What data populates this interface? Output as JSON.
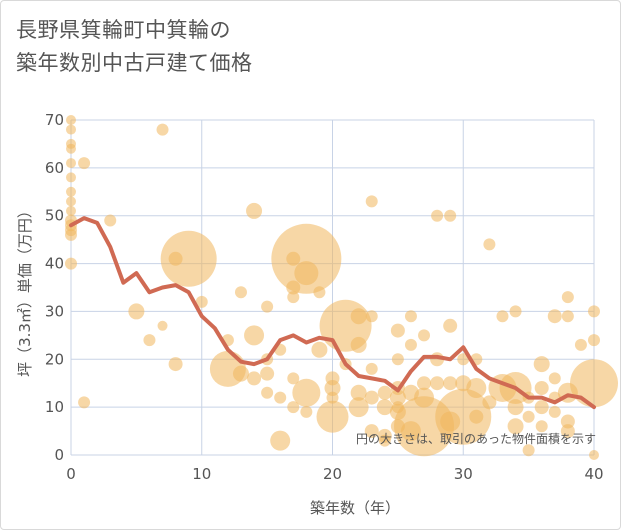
{
  "chart_data": {
    "type": "scatter",
    "title_lines": [
      "長野県箕輪町中箕輪の",
      "築年数別中古戸建て価格"
    ],
    "xlabel": "築年数（年）",
    "ylabel": "坪（3.3㎡）単価（万円）",
    "xlim": [
      0,
      40
    ],
    "ylim": [
      0,
      70
    ],
    "x_ticks": [
      "0",
      "10",
      "20",
      "30",
      "40"
    ],
    "y_ticks": [
      "0",
      "10",
      "20",
      "30",
      "40",
      "50",
      "60",
      "70"
    ],
    "grid": true,
    "annotation": "円の大きさは、取引のあった物件面積を示す",
    "colors": {
      "bubble": "#f0b65c",
      "line": "#d06a53",
      "grid": "#c8d3e6"
    },
    "bubbles": [
      {
        "x": 0,
        "y": 70,
        "s": 5
      },
      {
        "x": 0,
        "y": 68,
        "s": 5
      },
      {
        "x": 0,
        "y": 65,
        "s": 5
      },
      {
        "x": 0,
        "y": 64,
        "s": 5
      },
      {
        "x": 0,
        "y": 61,
        "s": 5
      },
      {
        "x": 0,
        "y": 58,
        "s": 5
      },
      {
        "x": 0,
        "y": 55,
        "s": 5
      },
      {
        "x": 0,
        "y": 53,
        "s": 5
      },
      {
        "x": 0,
        "y": 51,
        "s": 5
      },
      {
        "x": 0,
        "y": 49,
        "s": 6
      },
      {
        "x": 0,
        "y": 48,
        "s": 6
      },
      {
        "x": 0,
        "y": 47,
        "s": 6
      },
      {
        "x": 0,
        "y": 46,
        "s": 6
      },
      {
        "x": 0,
        "y": 40,
        "s": 6
      },
      {
        "x": 1,
        "y": 61,
        "s": 6
      },
      {
        "x": 1,
        "y": 11,
        "s": 6
      },
      {
        "x": 3,
        "y": 49,
        "s": 6
      },
      {
        "x": 5,
        "y": 30,
        "s": 8
      },
      {
        "x": 6,
        "y": 24,
        "s": 6
      },
      {
        "x": 7,
        "y": 68,
        "s": 6
      },
      {
        "x": 7,
        "y": 27,
        "s": 5
      },
      {
        "x": 8,
        "y": 41,
        "s": 7
      },
      {
        "x": 8,
        "y": 19,
        "s": 7
      },
      {
        "x": 9,
        "y": 41,
        "s": 28
      },
      {
        "x": 10,
        "y": 32,
        "s": 6
      },
      {
        "x": 12,
        "y": 18,
        "s": 18
      },
      {
        "x": 12,
        "y": 24,
        "s": 6
      },
      {
        "x": 13,
        "y": 34,
        "s": 6
      },
      {
        "x": 13,
        "y": 17,
        "s": 8
      },
      {
        "x": 14,
        "y": 51,
        "s": 8
      },
      {
        "x": 14,
        "y": 25,
        "s": 10
      },
      {
        "x": 14,
        "y": 16,
        "s": 7
      },
      {
        "x": 15,
        "y": 31,
        "s": 6
      },
      {
        "x": 15,
        "y": 20,
        "s": 6
      },
      {
        "x": 15,
        "y": 17,
        "s": 7
      },
      {
        "x": 15,
        "y": 13,
        "s": 6
      },
      {
        "x": 16,
        "y": 22,
        "s": 6
      },
      {
        "x": 16,
        "y": 12,
        "s": 6
      },
      {
        "x": 16,
        "y": 3,
        "s": 10
      },
      {
        "x": 17,
        "y": 41,
        "s": 7
      },
      {
        "x": 17,
        "y": 35,
        "s": 7
      },
      {
        "x": 17,
        "y": 33,
        "s": 6
      },
      {
        "x": 17,
        "y": 16,
        "s": 6
      },
      {
        "x": 17,
        "y": 10,
        "s": 6
      },
      {
        "x": 18,
        "y": 41,
        "s": 35
      },
      {
        "x": 18,
        "y": 38,
        "s": 12
      },
      {
        "x": 18,
        "y": 13,
        "s": 14
      },
      {
        "x": 18,
        "y": 9,
        "s": 6
      },
      {
        "x": 19,
        "y": 34,
        "s": 6
      },
      {
        "x": 19,
        "y": 22,
        "s": 8
      },
      {
        "x": 20,
        "y": 16,
        "s": 7
      },
      {
        "x": 20,
        "y": 14,
        "s": 8
      },
      {
        "x": 20,
        "y": 12,
        "s": 6
      },
      {
        "x": 20,
        "y": 8,
        "s": 16
      },
      {
        "x": 21,
        "y": 27,
        "s": 26
      },
      {
        "x": 21,
        "y": 19,
        "s": 6
      },
      {
        "x": 22,
        "y": 29,
        "s": 8
      },
      {
        "x": 22,
        "y": 23,
        "s": 8
      },
      {
        "x": 22,
        "y": 13,
        "s": 8
      },
      {
        "x": 22,
        "y": 10,
        "s": 10
      },
      {
        "x": 23,
        "y": 53,
        "s": 6
      },
      {
        "x": 23,
        "y": 29,
        "s": 6
      },
      {
        "x": 23,
        "y": 18,
        "s": 6
      },
      {
        "x": 23,
        "y": 12,
        "s": 7
      },
      {
        "x": 23,
        "y": 5,
        "s": 7
      },
      {
        "x": 24,
        "y": 13,
        "s": 7
      },
      {
        "x": 24,
        "y": 10,
        "s": 8
      },
      {
        "x": 24,
        "y": 4,
        "s": 7
      },
      {
        "x": 24,
        "y": 3,
        "s": 6
      },
      {
        "x": 25,
        "y": 26,
        "s": 7
      },
      {
        "x": 25,
        "y": 20,
        "s": 6
      },
      {
        "x": 25,
        "y": 14,
        "s": 7
      },
      {
        "x": 25,
        "y": 12,
        "s": 8
      },
      {
        "x": 25,
        "y": 10,
        "s": 6
      },
      {
        "x": 25,
        "y": 9,
        "s": 8
      },
      {
        "x": 25,
        "y": 6,
        "s": 7
      },
      {
        "x": 26,
        "y": 29,
        "s": 6
      },
      {
        "x": 26,
        "y": 23,
        "s": 6
      },
      {
        "x": 26,
        "y": 13,
        "s": 8
      },
      {
        "x": 26,
        "y": 5,
        "s": 10
      },
      {
        "x": 27,
        "y": 25,
        "s": 6
      },
      {
        "x": 27,
        "y": 15,
        "s": 7
      },
      {
        "x": 27,
        "y": 12,
        "s": 10
      },
      {
        "x": 27,
        "y": 6,
        "s": 30
      },
      {
        "x": 28,
        "y": 50,
        "s": 6
      },
      {
        "x": 28,
        "y": 20,
        "s": 7
      },
      {
        "x": 28,
        "y": 15,
        "s": 7
      },
      {
        "x": 29,
        "y": 50,
        "s": 6
      },
      {
        "x": 29,
        "y": 27,
        "s": 7
      },
      {
        "x": 29,
        "y": 15,
        "s": 7
      },
      {
        "x": 29,
        "y": 7,
        "s": 10
      },
      {
        "x": 30,
        "y": 8,
        "s": 28
      },
      {
        "x": 30,
        "y": 15,
        "s": 8
      },
      {
        "x": 30,
        "y": 20,
        "s": 6
      },
      {
        "x": 31,
        "y": 20,
        "s": 6
      },
      {
        "x": 31,
        "y": 14,
        "s": 10
      },
      {
        "x": 31,
        "y": 8,
        "s": 7
      },
      {
        "x": 32,
        "y": 44,
        "s": 6
      },
      {
        "x": 32,
        "y": 11,
        "s": 7
      },
      {
        "x": 33,
        "y": 29,
        "s": 6
      },
      {
        "x": 33,
        "y": 14,
        "s": 14
      },
      {
        "x": 34,
        "y": 30,
        "s": 6
      },
      {
        "x": 34,
        "y": 14,
        "s": 16
      },
      {
        "x": 34,
        "y": 10,
        "s": 8
      },
      {
        "x": 34,
        "y": 6,
        "s": 8
      },
      {
        "x": 35,
        "y": 12,
        "s": 6
      },
      {
        "x": 35,
        "y": 8,
        "s": 6
      },
      {
        "x": 35,
        "y": 1,
        "s": 6
      },
      {
        "x": 36,
        "y": 19,
        "s": 8
      },
      {
        "x": 36,
        "y": 14,
        "s": 7
      },
      {
        "x": 36,
        "y": 10,
        "s": 7
      },
      {
        "x": 36,
        "y": 6,
        "s": 6
      },
      {
        "x": 37,
        "y": 29,
        "s": 7
      },
      {
        "x": 37,
        "y": 16,
        "s": 6
      },
      {
        "x": 37,
        "y": 12,
        "s": 6
      },
      {
        "x": 37,
        "y": 9,
        "s": 6
      },
      {
        "x": 38,
        "y": 33,
        "s": 6
      },
      {
        "x": 38,
        "y": 29,
        "s": 6
      },
      {
        "x": 38,
        "y": 13,
        "s": 10
      },
      {
        "x": 38,
        "y": 7,
        "s": 7
      },
      {
        "x": 38,
        "y": 5,
        "s": 7
      },
      {
        "x": 39,
        "y": 23,
        "s": 6
      },
      {
        "x": 40,
        "y": 30,
        "s": 6
      },
      {
        "x": 40,
        "y": 24,
        "s": 6
      },
      {
        "x": 40,
        "y": 15,
        "s": 24
      },
      {
        "x": 40,
        "y": 0,
        "s": 5
      }
    ],
    "line": {
      "x": [
        0,
        1,
        2,
        3,
        4,
        5,
        6,
        7,
        8,
        9,
        10,
        11,
        12,
        13,
        14,
        15,
        16,
        17,
        18,
        19,
        20,
        21,
        22,
        23,
        24,
        25,
        26,
        27,
        28,
        29,
        30,
        31,
        32,
        33,
        34,
        35,
        36,
        37,
        38,
        39,
        40
      ],
      "y": [
        48,
        49.5,
        48.5,
        43.5,
        36,
        38,
        34,
        35,
        35.5,
        34,
        29,
        26.5,
        22,
        19.5,
        19,
        20,
        24,
        25,
        23.5,
        24.5,
        24,
        19,
        16.5,
        16,
        15.5,
        13.5,
        17.5,
        20.5,
        20.5,
        20,
        22.5,
        18,
        16,
        15,
        14,
        12,
        12,
        11,
        12.5,
        12,
        10
      ]
    }
  }
}
